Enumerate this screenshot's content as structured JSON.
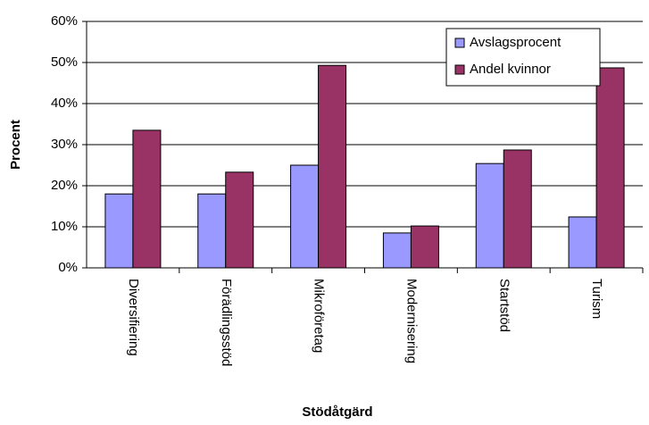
{
  "chart_data": {
    "type": "bar",
    "categories": [
      "Diversifiering",
      "Förädlingsstöd",
      "Mikroföretag",
      "Modernisering",
      "Startstöd",
      "Turism"
    ],
    "series": [
      {
        "name": "Avslagsprocent",
        "color": "#9999ff",
        "values": [
          18,
          18,
          25,
          8.5,
          25.4,
          12.4
        ]
      },
      {
        "name": "Andel kvinnor",
        "color": "#993366",
        "values": [
          33.5,
          23.3,
          49.3,
          10.2,
          28.7,
          48.7
        ]
      }
    ],
    "xlabel": "Stödåtgärd",
    "ylabel": "Procent",
    "ylim": [
      0,
      60
    ],
    "yticks": [
      {
        "value": 0,
        "label": "0%"
      },
      {
        "value": 10,
        "label": "10%"
      },
      {
        "value": 20,
        "label": "20%"
      },
      {
        "value": 30,
        "label": "30%"
      },
      {
        "value": 40,
        "label": "40%"
      },
      {
        "value": 50,
        "label": "50%"
      },
      {
        "value": 60,
        "label": "60%"
      }
    ],
    "grid": true,
    "legend": "upper right"
  }
}
